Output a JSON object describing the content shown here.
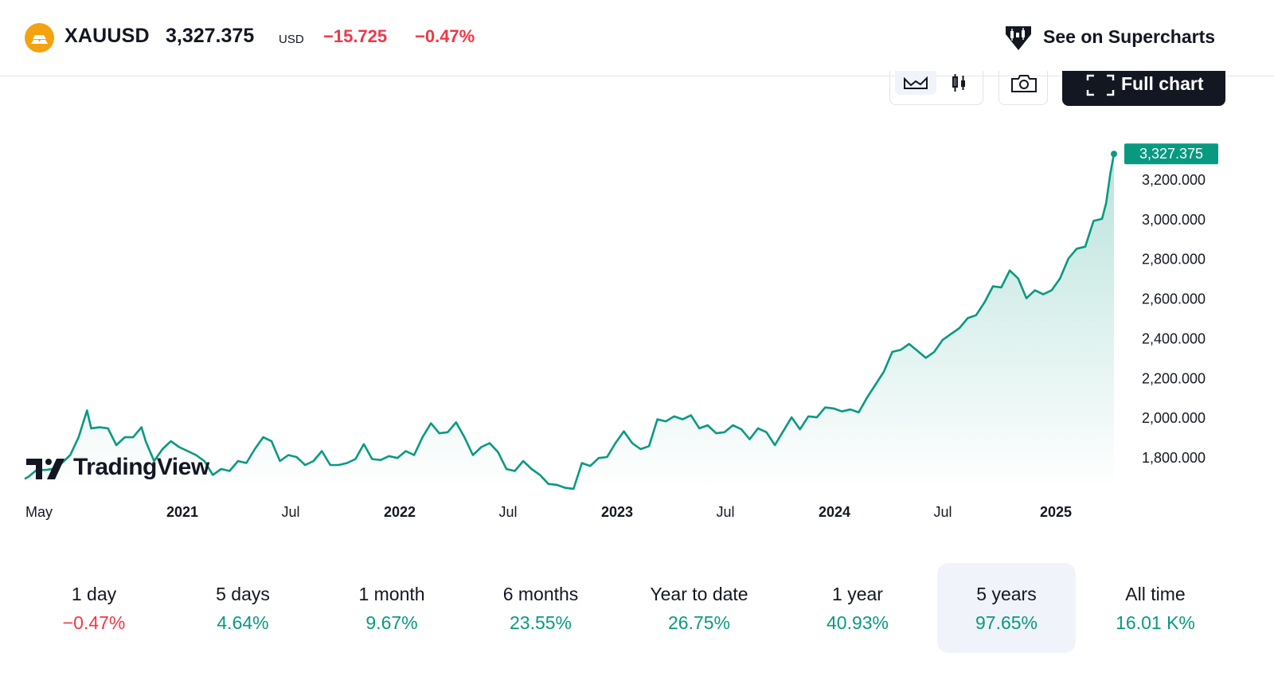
{
  "header": {
    "symbol": "XAUUSD",
    "price": "3,327.375",
    "currency": "USD",
    "change": "−15.725",
    "change_pct": "−0.47%",
    "logo_icon": "gold-bars-icon",
    "superchart_icon": "tradingview-diamond-icon",
    "superchart_label": "See on Supercharts"
  },
  "toolbar": {
    "area_icon": "area-chart-icon",
    "candle_icon": "candlestick-icon",
    "snapshot_icon": "camera-icon",
    "full_chart_icon": "fullscreen-icon",
    "full_chart_label": "Full chart"
  },
  "brand": {
    "watermark": "TradingView"
  },
  "colors": {
    "line": "#089981",
    "negative": "#F23645",
    "price_badge": "#089981"
  },
  "chart_data": {
    "type": "area",
    "x_ticks": [
      "May",
      "2021",
      "Jul",
      "2022",
      "Jul",
      "2023",
      "Jul",
      "2024",
      "Jul",
      "2025"
    ],
    "x_tick_bold": [
      false,
      true,
      false,
      true,
      false,
      true,
      false,
      true,
      false,
      true
    ],
    "y_ticks": [
      "1,800.000",
      "2,000.000",
      "2,200.000",
      "2,400.000",
      "2,600.000",
      "2,800.000",
      "3,000.000",
      "3,200.000"
    ],
    "y_tick_values": [
      1800,
      2000,
      2200,
      2400,
      2600,
      2800,
      3000,
      3200
    ],
    "last_price_label": "3,327.375",
    "last_price": 3327.375,
    "series": [
      {
        "x": [
          "2020-04-25",
          "2020-05-01",
          "2020-05-15",
          "2020-05-29",
          "2020-06-12",
          "2020-06-26",
          "2020-07-10",
          "2020-07-24",
          "2020-08-07",
          "2020-08-14",
          "2020-08-28",
          "2020-09-11",
          "2020-09-25",
          "2020-10-09",
          "2020-10-23",
          "2020-11-06",
          "2020-11-13",
          "2020-11-27",
          "2020-12-11",
          "2020-12-25",
          "2021-01-08",
          "2021-01-22",
          "2021-02-05",
          "2021-02-19",
          "2021-03-05",
          "2021-03-19",
          "2021-04-02",
          "2021-04-16",
          "2021-04-30",
          "2021-05-14",
          "2021-05-28",
          "2021-06-11",
          "2021-06-25",
          "2021-07-09",
          "2021-07-23",
          "2021-08-06",
          "2021-08-20",
          "2021-09-03",
          "2021-09-17",
          "2021-10-01",
          "2021-10-15",
          "2021-10-29",
          "2021-11-12",
          "2021-11-26",
          "2021-12-10",
          "2021-12-24",
          "2022-01-07",
          "2022-01-21",
          "2022-02-04",
          "2022-02-18",
          "2022-03-04",
          "2022-03-18",
          "2022-04-01",
          "2022-04-15",
          "2022-04-29",
          "2022-05-13",
          "2022-05-27",
          "2022-06-10",
          "2022-06-24",
          "2022-07-08",
          "2022-07-22",
          "2022-08-05",
          "2022-08-19",
          "2022-09-02",
          "2022-09-16",
          "2022-09-30",
          "2022-10-14",
          "2022-10-28",
          "2022-11-11",
          "2022-11-25",
          "2022-12-09",
          "2022-12-23",
          "2023-01-06",
          "2023-01-20",
          "2023-02-03",
          "2023-02-17",
          "2023-03-03",
          "2023-03-17",
          "2023-03-31",
          "2023-04-14",
          "2023-04-28",
          "2023-05-12",
          "2023-05-26",
          "2023-06-09",
          "2023-06-23",
          "2023-07-07",
          "2023-07-21",
          "2023-08-04",
          "2023-08-18",
          "2023-09-01",
          "2023-09-15",
          "2023-09-29",
          "2023-10-13",
          "2023-10-27",
          "2023-11-10",
          "2023-11-24",
          "2023-12-08",
          "2023-12-22",
          "2024-01-05",
          "2024-01-19",
          "2024-02-02",
          "2024-02-16",
          "2024-03-01",
          "2024-03-15",
          "2024-03-29",
          "2024-04-12",
          "2024-04-26",
          "2024-05-10",
          "2024-05-24",
          "2024-06-07",
          "2024-06-21",
          "2024-07-05",
          "2024-07-19",
          "2024-08-02",
          "2024-08-16",
          "2024-08-30",
          "2024-09-13",
          "2024-09-27",
          "2024-10-11",
          "2024-10-25",
          "2024-11-08",
          "2024-11-22",
          "2024-12-06",
          "2024-12-20",
          "2025-01-03",
          "2025-01-17",
          "2025-01-31",
          "2025-02-14",
          "2025-02-28",
          "2025-03-14",
          "2025-03-28",
          "2025-04-04",
          "2025-04-11",
          "2025-04-17"
        ],
        "values": [
          1690,
          1700,
          1735,
          1735,
          1740,
          1770,
          1810,
          1900,
          2035,
          1945,
          1950,
          1945,
          1860,
          1900,
          1900,
          1950,
          1880,
          1780,
          1840,
          1880,
          1850,
          1830,
          1810,
          1780,
          1710,
          1740,
          1730,
          1780,
          1770,
          1840,
          1900,
          1880,
          1780,
          1810,
          1800,
          1760,
          1780,
          1830,
          1760,
          1760,
          1770,
          1790,
          1865,
          1790,
          1785,
          1805,
          1795,
          1830,
          1810,
          1900,
          1970,
          1920,
          1925,
          1975,
          1900,
          1810,
          1850,
          1870,
          1825,
          1740,
          1730,
          1780,
          1740,
          1710,
          1665,
          1660,
          1645,
          1640,
          1770,
          1755,
          1795,
          1800,
          1870,
          1930,
          1870,
          1840,
          1855,
          1990,
          1980,
          2005,
          1990,
          2010,
          1945,
          1960,
          1920,
          1925,
          1960,
          1940,
          1890,
          1945,
          1925,
          1860,
          1930,
          2000,
          1940,
          2005,
          2000,
          2050,
          2045,
          2030,
          2040,
          2025,
          2100,
          2165,
          2230,
          2330,
          2340,
          2370,
          2335,
          2300,
          2330,
          2390,
          2420,
          2450,
          2500,
          2515,
          2580,
          2660,
          2655,
          2740,
          2700,
          2600,
          2640,
          2620,
          2640,
          2700,
          2800,
          2850,
          2860,
          2990,
          3000,
          3080,
          3230,
          3327.375
        ]
      }
    ]
  },
  "periods": [
    {
      "label": "1 day",
      "value": "−0.47%",
      "dir": "neg"
    },
    {
      "label": "5 days",
      "value": "4.64%",
      "dir": "pos"
    },
    {
      "label": "1 month",
      "value": "9.67%",
      "dir": "pos"
    },
    {
      "label": "6 months",
      "value": "23.55%",
      "dir": "pos"
    },
    {
      "label": "Year to date",
      "value": "26.75%",
      "dir": "pos"
    },
    {
      "label": "1 year",
      "value": "40.93%",
      "dir": "pos"
    },
    {
      "label": "5 years",
      "value": "97.65%",
      "dir": "pos",
      "active": true
    },
    {
      "label": "All time",
      "value": "16.01 K%",
      "dir": "pos"
    }
  ]
}
